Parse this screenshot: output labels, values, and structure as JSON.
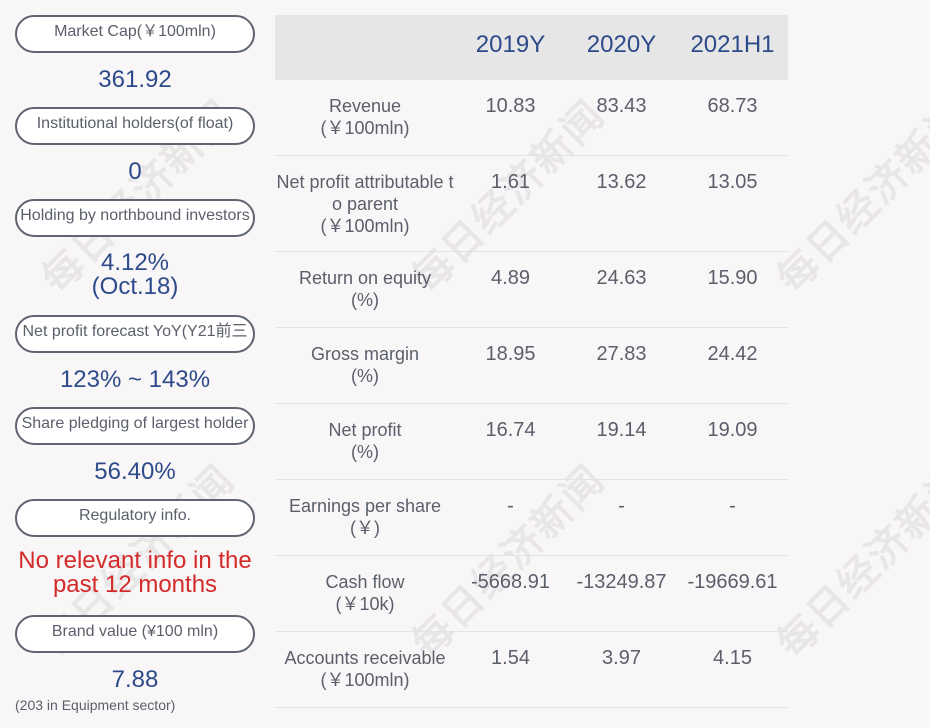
{
  "left_panel": {
    "market_cap": {
      "label": "Market Cap(￥100mln)",
      "value": "361.92"
    },
    "institutional": {
      "label": "Institutional holders(of float)",
      "value": "0"
    },
    "northbound": {
      "label": "Holding by northbound investors",
      "value_line1": "4.12%",
      "value_line2": "(Oct.18)"
    },
    "forecast": {
      "label": "Net profit forecast YoY(Y21前三",
      "value": "123% ~ 143%"
    },
    "pledging": {
      "label": "Share pledging of largest holder",
      "value": "56.40%"
    },
    "regulatory": {
      "label": "Regulatory info.",
      "value_line1": "No relevant info in the",
      "value_line2": "past 12 months"
    },
    "brand": {
      "label": "Brand value (¥100 mln)",
      "value": "7.88",
      "note": "(203 in Equipment sector)"
    }
  },
  "table": {
    "columns": [
      "2019Y",
      "2020Y",
      "2021H1"
    ],
    "rows": [
      {
        "label1": "Revenue",
        "label2": "(￥100mln)",
        "label3": "",
        "values": [
          "10.83",
          "83.43",
          "68.73"
        ]
      },
      {
        "label1": "Net profit attributable t",
        "label2": "o parent",
        "label3": "(￥100mln)",
        "values": [
          "1.61",
          "13.62",
          "13.05"
        ]
      },
      {
        "label1": "Return on equity",
        "label2": "(%)",
        "label3": "",
        "values": [
          "4.89",
          "24.63",
          "15.90"
        ]
      },
      {
        "label1": "Gross margin",
        "label2": "(%)",
        "label3": "",
        "values": [
          "18.95",
          "27.83",
          "24.42"
        ]
      },
      {
        "label1": "Net profit",
        "label2": "(%)",
        "label3": "",
        "values": [
          "16.74",
          "19.14",
          "19.09"
        ]
      },
      {
        "label1": "Earnings per share",
        "label2": "(￥)",
        "label3": "",
        "values": [
          "-",
          "-",
          "-"
        ]
      },
      {
        "label1": "Cash flow",
        "label2": "(￥10k)",
        "label3": "",
        "values": [
          "-5668.91",
          "-13249.87",
          "-19669.61"
        ]
      },
      {
        "label1": "Accounts receivable",
        "label2": "(￥100mln)",
        "label3": "",
        "values": [
          "1.54",
          "3.97",
          "4.15"
        ]
      }
    ]
  },
  "watermark": "每日经济新闻",
  "colors": {
    "accent": "#2d4a8a",
    "alert": "#d42a2a",
    "header_bg": "#e6e6e6"
  }
}
